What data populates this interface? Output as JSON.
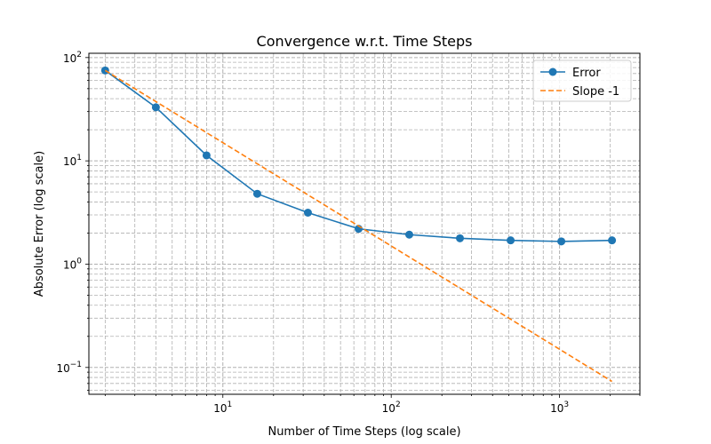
{
  "chart_data": {
    "type": "line",
    "title": "Convergence w.r.t. Time Steps",
    "xlabel": "Number of Time Steps (log scale)",
    "ylabel": "Absolute Error (log scale)",
    "xscale": "log",
    "yscale": "log",
    "xlim": [
      1.6,
      3000
    ],
    "ylim": [
      0.055,
      110
    ],
    "grid": "major and minor, dashed",
    "legend_position": "upper right",
    "x_ticks": [
      {
        "value": 10,
        "base": "10",
        "exp": "1"
      },
      {
        "value": 100,
        "base": "10",
        "exp": "2"
      },
      {
        "value": 1000,
        "base": "10",
        "exp": "3"
      }
    ],
    "y_ticks": [
      {
        "value": 0.1,
        "base": "10",
        "exp": "−1"
      },
      {
        "value": 1,
        "base": "10",
        "exp": "0"
      },
      {
        "value": 10,
        "base": "10",
        "exp": "1"
      },
      {
        "value": 100,
        "base": "10",
        "exp": "2"
      }
    ],
    "series": [
      {
        "name": "Error",
        "color": "#1f77b4",
        "style": "solid",
        "marker": "circle",
        "x": [
          2,
          4,
          8,
          16,
          32,
          64,
          128,
          256,
          512,
          1024,
          2048
        ],
        "y": [
          75,
          33,
          11.3,
          4.8,
          3.15,
          2.2,
          1.93,
          1.78,
          1.7,
          1.66,
          1.7
        ]
      },
      {
        "name": "Slope -1",
        "color": "#ff7f0e",
        "style": "dashed",
        "marker": "none",
        "x": [
          2,
          4,
          8,
          16,
          32,
          64,
          128,
          256,
          512,
          1024,
          2048
        ],
        "y": [
          75,
          37.5,
          18.75,
          9.375,
          4.6875,
          2.34375,
          1.171875,
          0.5859375,
          0.29296875,
          0.146484375,
          0.0732421875
        ]
      }
    ]
  }
}
